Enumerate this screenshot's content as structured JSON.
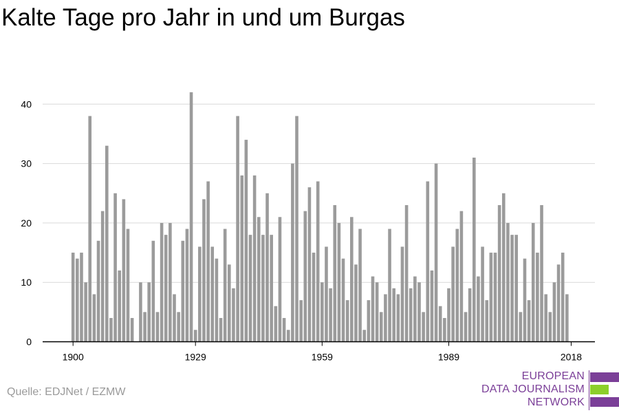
{
  "title": "Kalte Tage pro Jahr in und um Burgas",
  "source": "Quelle: EDJNet / EZMW",
  "logo": {
    "line1": "EUROPEAN",
    "line2": "DATA JOURNALISM",
    "line3": "NETWORK"
  },
  "colors": {
    "bar": "#9b9b9b",
    "grid": "#d9d9d9",
    "axis": "#000000",
    "logo_purple": "#7b3f98",
    "logo_green": "#8ccf2a"
  },
  "chart_data": {
    "type": "bar",
    "title": "Kalte Tage pro Jahr in und um Burgas",
    "xlabel": "",
    "ylabel": "",
    "ylim": [
      0,
      42
    ],
    "yticks": [
      0,
      10,
      20,
      30,
      40
    ],
    "xticks": [
      1900,
      1929,
      1959,
      1989,
      2018
    ],
    "grid": true,
    "x": [
      1900,
      1901,
      1902,
      1903,
      1904,
      1905,
      1906,
      1907,
      1908,
      1909,
      1910,
      1911,
      1912,
      1913,
      1914,
      1915,
      1916,
      1917,
      1918,
      1919,
      1920,
      1921,
      1922,
      1923,
      1924,
      1925,
      1926,
      1927,
      1928,
      1929,
      1930,
      1931,
      1932,
      1933,
      1934,
      1935,
      1936,
      1937,
      1938,
      1939,
      1940,
      1941,
      1942,
      1943,
      1944,
      1945,
      1946,
      1947,
      1948,
      1949,
      1950,
      1951,
      1952,
      1953,
      1954,
      1955,
      1956,
      1957,
      1958,
      1959,
      1960,
      1961,
      1962,
      1963,
      1964,
      1965,
      1966,
      1967,
      1968,
      1969,
      1970,
      1971,
      1972,
      1973,
      1974,
      1975,
      1976,
      1977,
      1978,
      1979,
      1980,
      1981,
      1982,
      1983,
      1984,
      1985,
      1986,
      1987,
      1988,
      1989,
      1990,
      1991,
      1992,
      1993,
      1994,
      1995,
      1996,
      1997,
      1998,
      1999,
      2000,
      2001,
      2002,
      2003,
      2004,
      2005,
      2006,
      2007,
      2008,
      2009,
      2010,
      2011,
      2012,
      2013,
      2014,
      2015,
      2016,
      2017,
      2018
    ],
    "values": [
      15,
      14,
      15,
      10,
      38,
      8,
      17,
      22,
      33,
      4,
      25,
      12,
      24,
      19,
      4,
      0,
      10,
      5,
      10,
      17,
      5,
      20,
      18,
      20,
      8,
      5,
      17,
      19,
      42,
      2,
      16,
      24,
      27,
      16,
      14,
      4,
      19,
      13,
      9,
      38,
      28,
      34,
      18,
      28,
      21,
      18,
      25,
      18,
      6,
      21,
      4,
      2,
      30,
      38,
      7,
      22,
      26,
      15,
      27,
      10,
      16,
      9,
      23,
      20,
      14,
      7,
      21,
      13,
      19,
      2,
      7,
      11,
      10,
      5,
      8,
      19,
      9,
      8,
      16,
      23,
      9,
      11,
      10,
      5,
      27,
      12,
      30,
      6,
      4,
      9,
      16,
      19,
      22,
      5,
      9,
      31,
      11,
      16,
      7,
      15,
      15,
      23,
      25,
      20,
      18,
      18,
      5,
      14,
      7,
      20,
      15,
      23,
      8,
      5,
      10,
      13,
      15,
      8,
      0
    ]
  }
}
